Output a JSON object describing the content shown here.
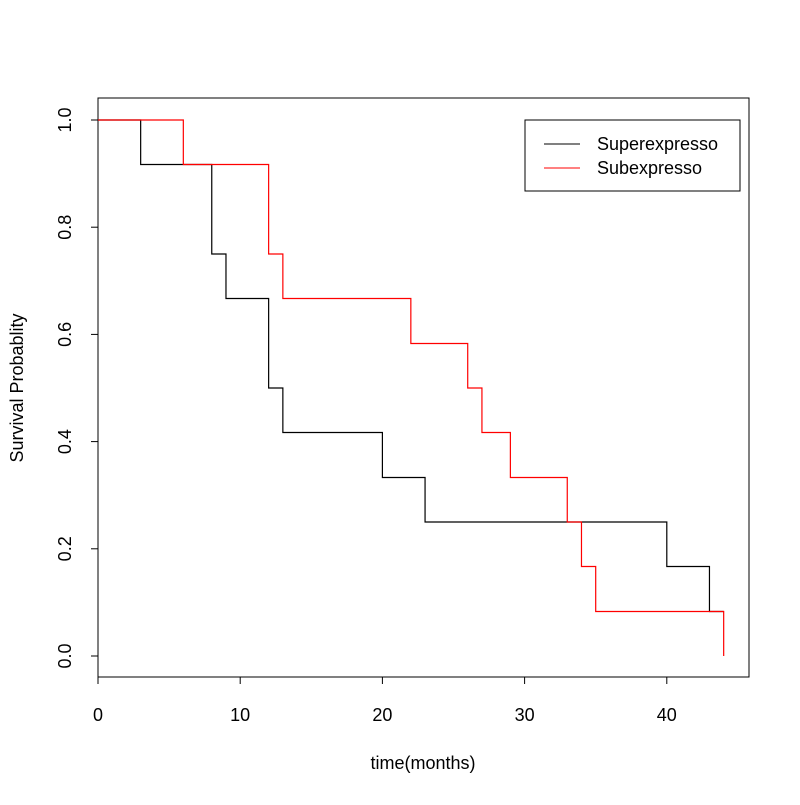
{
  "chart_data": {
    "type": "line",
    "step": true,
    "title": "",
    "xlabel": "time(months)",
    "ylabel": "Survival Probablity",
    "xlim": [
      0,
      45
    ],
    "ylim": [
      0,
      1
    ],
    "xticks": [
      "0",
      "10",
      "20",
      "30",
      "40"
    ],
    "yticks": [
      "0.0",
      "0.2",
      "0.4",
      "0.6",
      "0.8",
      "1.0"
    ],
    "grid": false,
    "legend_position": "top-right",
    "series": [
      {
        "name": "Superexpresso",
        "color": "#000000",
        "x": [
          0,
          3,
          8,
          9,
          12,
          13,
          20,
          23,
          40,
          43,
          44
        ],
        "y": [
          1.0,
          0.917,
          0.75,
          0.667,
          0.5,
          0.417,
          0.333,
          0.25,
          0.167,
          0.083,
          0.083
        ]
      },
      {
        "name": "Subexpresso",
        "color": "#ff0000",
        "x": [
          0,
          6,
          12,
          13,
          22,
          26,
          27,
          29,
          33,
          34,
          35,
          44
        ],
        "y": [
          1.0,
          0.917,
          0.75,
          0.667,
          0.583,
          0.5,
          0.417,
          0.333,
          0.25,
          0.167,
          0.083,
          0.0
        ]
      }
    ]
  }
}
